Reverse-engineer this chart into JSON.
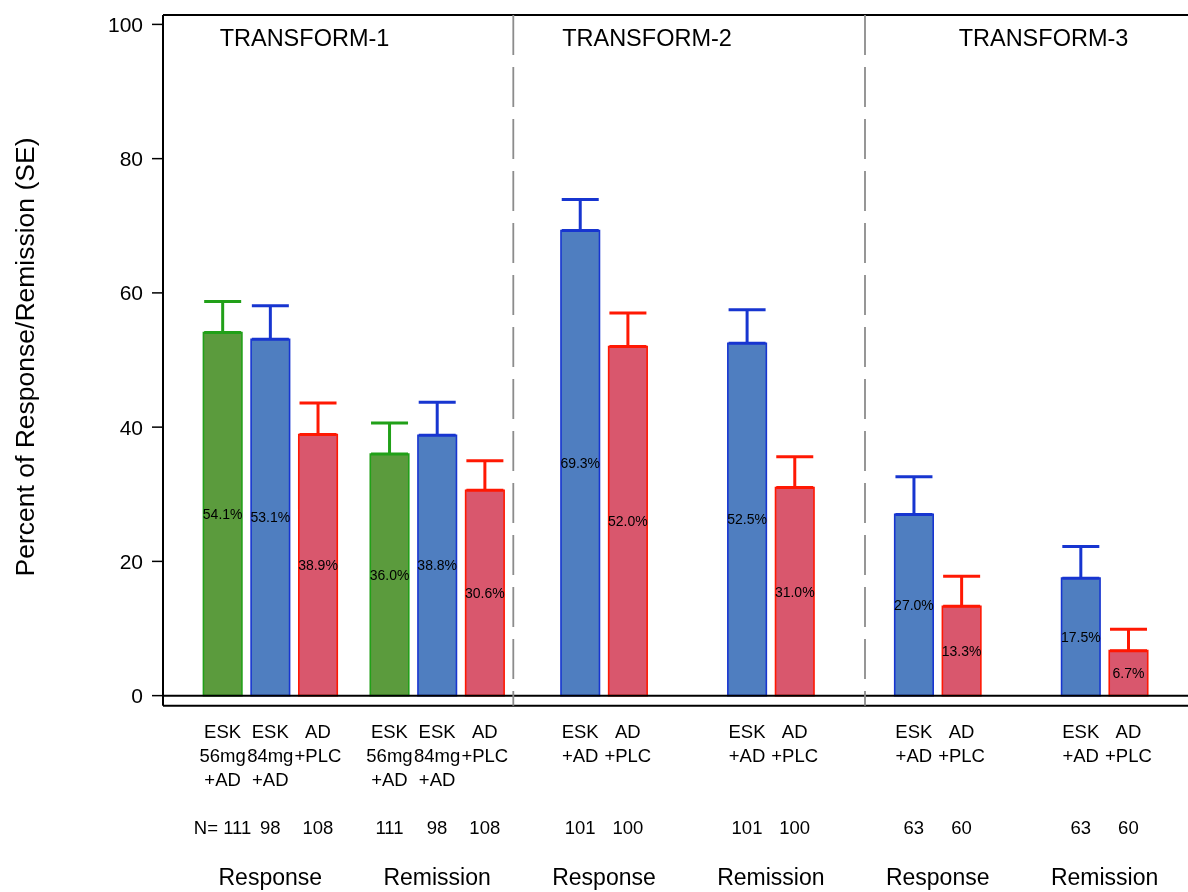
{
  "chart_data": {
    "type": "bar",
    "ylabel": "Percent of Response/Remission (SE)",
    "categories": [
      null,
      null,
      "ESK\n56mg\n+AD\n\nN= 111",
      null,
      "ESK\n84mg\n+AD\n\n98",
      null,
      "AD\n+PLC\n\n108",
      null,
      null,
      "ESK\n56mg\n+AD\n\n111",
      null,
      "ESK\n84mg\n+AD\n\n98",
      null,
      "AD\n+PLC\n\n108",
      null,
      null,
      null,
      "ESK\n+AD\n\n101",
      null,
      "AD\n+PLC\n\n100",
      null,
      null,
      null,
      null,
      "ESK\n+AD\n\n101",
      null,
      "AD\n+PLC\n\n100",
      null,
      null,
      null,
      null,
      "ESK\n+AD\n\n63",
      null,
      "AD\n+PLC\n\n60",
      null,
      null,
      null,
      null,
      "ESK\n+AD\n\n63",
      null,
      "AD\n+PLC\n\n60",
      null,
      null
    ],
    "values": [
      null,
      null,
      54.1,
      null,
      53.1,
      null,
      38.9,
      null,
      null,
      36.0,
      null,
      38.8,
      null,
      30.6,
      null,
      null,
      null,
      69.3,
      null,
      52.0,
      null,
      null,
      null,
      null,
      52.5,
      null,
      31.0,
      null,
      null,
      null,
      null,
      27.0,
      null,
      13.3,
      null,
      null,
      null,
      null,
      17.5,
      null,
      6.7,
      null,
      null
    ],
    "errors": [
      null,
      null,
      [
        54.1,
        58.7
      ],
      null,
      [
        53.1,
        58.1
      ],
      null,
      [
        38.9,
        43.6
      ],
      null,
      null,
      [
        36.0,
        40.6
      ],
      null,
      [
        38.8,
        43.7
      ],
      null,
      [
        30.6,
        35.0
      ],
      null,
      null,
      null,
      [
        69.3,
        73.9
      ],
      null,
      [
        52.0,
        57.0
      ],
      null,
      null,
      null,
      null,
      [
        52.5,
        57.5
      ],
      null,
      [
        31.0,
        35.6
      ],
      null,
      null,
      null,
      null,
      [
        27.0,
        32.6
      ],
      null,
      [
        13.3,
        17.8
      ],
      null,
      null,
      null,
      null,
      [
        17.5,
        22.2
      ],
      null,
      [
        6.7,
        9.9
      ],
      null,
      null
    ],
    "value_labels": [
      null,
      null,
      "54.1%",
      null,
      "53.1%",
      null,
      "38.9%",
      null,
      null,
      "36.0%",
      null,
      "38.8%",
      null,
      "30.6%",
      null,
      null,
      null,
      "69.3%",
      null,
      "52.0%",
      null,
      null,
      null,
      null,
      "52.5%",
      null,
      "31.0%",
      null,
      null,
      null,
      null,
      "27.0%",
      null,
      "13.3%",
      null,
      null,
      null,
      null,
      "17.5%",
      null,
      "6.7%",
      null,
      null
    ],
    "colors": [
      null,
      null,
      "#5b9b3d",
      null,
      "#4f7ec0",
      null,
      "#d9576d",
      null,
      null,
      "#5b9b3d",
      null,
      "#4f7ec0",
      null,
      "#d9576d",
      null,
      null,
      null,
      "#4f7ec0",
      null,
      "#d9576d",
      null,
      null,
      null,
      null,
      "#4f7ec0",
      null,
      "#d9576d",
      null,
      null,
      null,
      null,
      "#4f7ec0",
      null,
      "#d9576d",
      null,
      null,
      null,
      null,
      "#4f7ec0",
      null,
      "#d9576d",
      null,
      null
    ],
    "ylim": [
      -1.5,
      101.4
    ],
    "yticks": [
      0,
      20,
      40,
      60,
      80,
      100
    ],
    "ref_lines": [
      {
        "axis": "y",
        "value": 0,
        "color": "#000000"
      }
    ],
    "annotations": [
      "TRANSFORM-1",
      "TRANSFORM-2",
      "TRANSFORM-3",
      "Response",
      "Remission",
      "Response",
      "Remission",
      "Response",
      "Remission"
    ]
  }
}
